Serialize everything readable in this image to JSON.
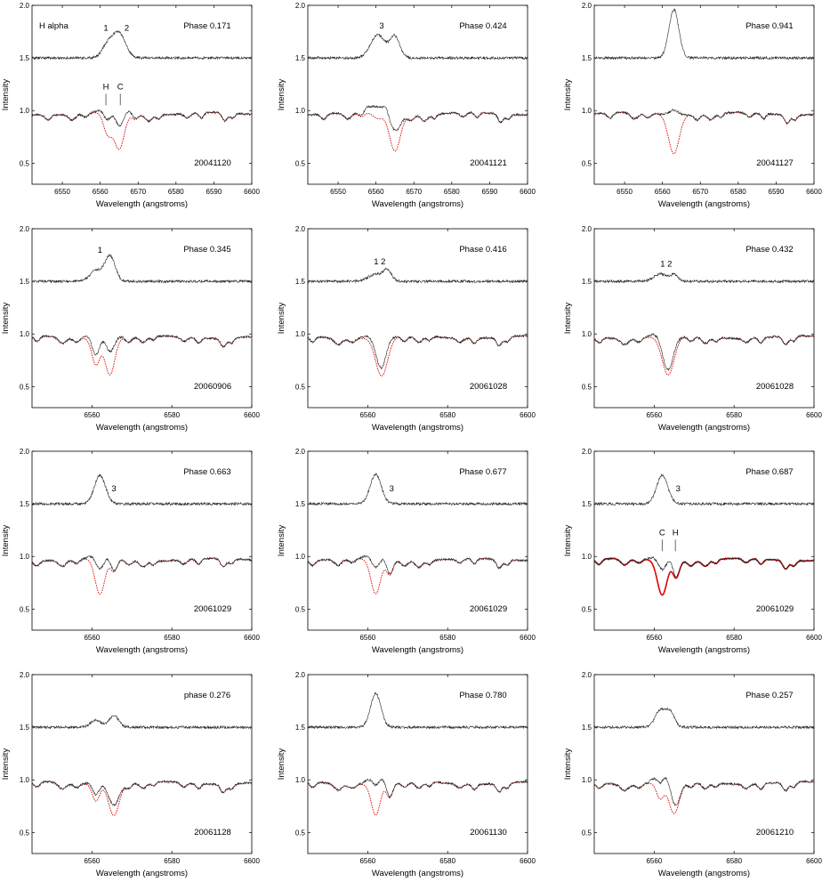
{
  "figure": {
    "ylabel": "Intensity",
    "xlabel": "Wavelength (angstroms)",
    "colors": {
      "observed": "#222222",
      "model": "#e00000",
      "axis": "#000000"
    }
  },
  "chart_data": [
    {
      "type": "line",
      "xlim": [
        6542,
        6600
      ],
      "ylim": [
        0.3,
        2.0
      ],
      "xticks": [
        6550,
        6560,
        6570,
        6580,
        6590,
        6600
      ],
      "yticks": [
        0.5,
        1.0,
        1.5,
        2.0
      ],
      "xtick_labels": [
        "6550",
        "6560",
        "6570",
        "6580",
        "6590",
        "6600"
      ],
      "ytick_labels": [
        "0.5",
        "1.0",
        "1.5",
        "2.0"
      ],
      "label": "H alpha",
      "phase": "Phase 0.171",
      "date": "20041120",
      "emission": [
        {
          "x": 6562,
          "y": 1.62,
          "w": 1.5
        },
        {
          "x": 6565,
          "y": 1.73,
          "w": 1.7
        }
      ],
      "absorption": [
        {
          "x": 6562,
          "d": 0.2,
          "w": 1.1
        },
        {
          "x": 6565,
          "d": 0.34,
          "w": 1.3
        }
      ],
      "features": [
        {
          "text": "1",
          "x": 6561.5,
          "y": 1.76
        },
        {
          "text": "2",
          "x": 6567,
          "y": 1.76
        }
      ],
      "markers": [
        {
          "text": "H",
          "x": 6561.5
        },
        {
          "text": "C",
          "x": 6565.3
        }
      ]
    },
    {
      "type": "line",
      "xlim": [
        6542,
        6600
      ],
      "ylim": [
        0.3,
        2.0
      ],
      "xticks": [
        6550,
        6560,
        6570,
        6580,
        6590,
        6600
      ],
      "yticks": [
        0.5,
        1.0,
        1.5,
        2.0
      ],
      "xtick_labels": [
        "6550",
        "6560",
        "6570",
        "6580",
        "6590",
        "6600"
      ],
      "ytick_labels": [
        "0.5",
        "1.0",
        "1.5",
        "2.0"
      ],
      "phase": "Phase 0.424",
      "date": "20041121",
      "emission": [
        {
          "x": 6560.5,
          "y": 1.72,
          "w": 1.9
        },
        {
          "x": 6565,
          "y": 1.7,
          "w": 1.3
        }
      ],
      "absorption": [
        {
          "x": 6560.5,
          "d": 0.05,
          "w": 1.2
        },
        {
          "x": 6565,
          "d": 0.35,
          "w": 1.4
        }
      ],
      "features": [
        {
          "text": "3",
          "x": 6561.5,
          "y": 1.78
        }
      ],
      "markers": []
    },
    {
      "type": "line",
      "xlim": [
        6542,
        6600
      ],
      "ylim": [
        0.3,
        2.0
      ],
      "xticks": [
        6550,
        6560,
        6570,
        6580,
        6590,
        6600
      ],
      "yticks": [
        0.5,
        1.0,
        1.5,
        2.0
      ],
      "xtick_labels": [
        "6550",
        "6560",
        "6570",
        "6580",
        "6590",
        "6600"
      ],
      "ytick_labels": [
        "0.5",
        "1.0",
        "1.5",
        "2.0"
      ],
      "phase": "Phase 0.941",
      "date": "20041127",
      "emission": [
        {
          "x": 6563,
          "y": 1.96,
          "w": 1.3
        }
      ],
      "absorption": [
        {
          "x": 6563,
          "d": 0.37,
          "w": 1.4
        }
      ],
      "features": [],
      "markers": []
    },
    {
      "type": "line",
      "xlim": [
        6545,
        6600
      ],
      "ylim": [
        0.3,
        2.0
      ],
      "xticks": [
        6560,
        6580,
        6600
      ],
      "yticks": [
        0.5,
        1.0,
        1.5,
        2.0
      ],
      "xtick_labels": [
        "6560",
        "6580",
        "6600"
      ],
      "ytick_labels": [
        "0.5",
        "1.0",
        "1.5",
        "2.0"
      ],
      "phase": "Phase 0.345",
      "date": "20060906",
      "emission": [
        {
          "x": 6561,
          "y": 1.6,
          "w": 1.5
        },
        {
          "x": 6564.5,
          "y": 1.74,
          "w": 1.3
        }
      ],
      "absorption": [
        {
          "x": 6561,
          "d": 0.25,
          "w": 1.0
        },
        {
          "x": 6564.5,
          "d": 0.35,
          "w": 1.2
        }
      ],
      "features": [
        {
          "text": "1",
          "x": 6562,
          "y": 1.77
        }
      ],
      "markers": []
    },
    {
      "type": "line",
      "xlim": [
        6545,
        6600
      ],
      "ylim": [
        0.3,
        2.0
      ],
      "xticks": [
        6560,
        6580,
        6600
      ],
      "yticks": [
        0.5,
        1.0,
        1.5,
        2.0
      ],
      "xtick_labels": [
        "6560",
        "6580",
        "6600"
      ],
      "ytick_labels": [
        "0.5",
        "1.0",
        "1.5",
        "2.0"
      ],
      "phase": "Phase 0.416",
      "date": "20061028",
      "emission": [
        {
          "x": 6562,
          "y": 1.57,
          "w": 1.8
        },
        {
          "x": 6565,
          "y": 1.6,
          "w": 1.0
        }
      ],
      "absorption": [
        {
          "x": 6563.5,
          "d": 0.37,
          "w": 1.5
        }
      ],
      "features": [
        {
          "text": "1 2",
          "x": 6563,
          "y": 1.66
        }
      ],
      "markers": []
    },
    {
      "type": "line",
      "xlim": [
        6545,
        6600
      ],
      "ylim": [
        0.3,
        2.0
      ],
      "xticks": [
        6560,
        6580,
        6600
      ],
      "yticks": [
        0.5,
        1.0,
        1.5,
        2.0
      ],
      "xtick_labels": [
        "6560",
        "6580",
        "6600"
      ],
      "ytick_labels": [
        "0.5",
        "1.0",
        "1.5",
        "2.0"
      ],
      "phase": "Phase 0.432",
      "date": "20061028",
      "emission": [
        {
          "x": 6561.5,
          "y": 1.57,
          "w": 1.6
        },
        {
          "x": 6565,
          "y": 1.56,
          "w": 1.0
        }
      ],
      "absorption": [
        {
          "x": 6563.5,
          "d": 0.37,
          "w": 1.5
        }
      ],
      "features": [
        {
          "text": "1 2",
          "x": 6563,
          "y": 1.64
        }
      ],
      "markers": []
    },
    {
      "type": "line",
      "xlim": [
        6545,
        6600
      ],
      "ylim": [
        0.3,
        2.0
      ],
      "xticks": [
        6560,
        6580,
        6600
      ],
      "yticks": [
        0.5,
        1.0,
        1.5,
        2.0
      ],
      "xtick_labels": [
        "6560",
        "6580",
        "6600"
      ],
      "ytick_labels": [
        "0.5",
        "1.0",
        "1.5",
        "2.0"
      ],
      "phase": "Phase 0.663",
      "date": "20061029",
      "emission": [
        {
          "x": 6562,
          "y": 1.77,
          "w": 1.4
        }
      ],
      "absorption": [
        {
          "x": 6562,
          "d": 0.34,
          "w": 1.2
        },
        {
          "x": 6565.5,
          "d": 0.12,
          "w": 0.8
        }
      ],
      "features": [
        {
          "text": "3",
          "x": 6565.5,
          "y": 1.62
        }
      ],
      "markers": []
    },
    {
      "type": "line",
      "xlim": [
        6545,
        6600
      ],
      "ylim": [
        0.3,
        2.0
      ],
      "xticks": [
        6560,
        6580,
        6600
      ],
      "yticks": [
        0.5,
        1.0,
        1.5,
        2.0
      ],
      "xtick_labels": [
        "6560",
        "6580",
        "6600"
      ],
      "ytick_labels": [
        "0.5",
        "1.0",
        "1.5",
        "2.0"
      ],
      "phase": "Phase 0.677",
      "date": "20061029",
      "emission": [
        {
          "x": 6562,
          "y": 1.78,
          "w": 1.4
        }
      ],
      "absorption": [
        {
          "x": 6562,
          "d": 0.33,
          "w": 1.2
        },
        {
          "x": 6565.5,
          "d": 0.14,
          "w": 0.8
        }
      ],
      "features": [
        {
          "text": "3",
          "x": 6566,
          "y": 1.62
        }
      ],
      "markers": []
    },
    {
      "type": "line",
      "xlim": [
        6545,
        6600
      ],
      "ylim": [
        0.3,
        2.0
      ],
      "xticks": [
        6560,
        6580,
        6600
      ],
      "yticks": [
        0.5,
        1.0,
        1.5,
        2.0
      ],
      "xtick_labels": [
        "6560",
        "6580",
        "6600"
      ],
      "ytick_labels": [
        "0.5",
        "1.0",
        "1.5",
        "2.0"
      ],
      "phase": "Phase 0.687",
      "date": "20061029",
      "emission": [
        {
          "x": 6562,
          "y": 1.77,
          "w": 1.4
        }
      ],
      "absorption": [
        {
          "x": 6562,
          "d": 0.33,
          "w": 1.2
        },
        {
          "x": 6565.5,
          "d": 0.16,
          "w": 0.8
        }
      ],
      "features": [
        {
          "text": "3",
          "x": 6566,
          "y": 1.62
        }
      ],
      "markers": [
        {
          "text": "C",
          "x": 6562
        },
        {
          "text": "H",
          "x": 6565.3
        }
      ]
    },
    {
      "type": "line",
      "xlim": [
        6545,
        6600
      ],
      "ylim": [
        0.3,
        2.0
      ],
      "xticks": [
        6560,
        6580,
        6600
      ],
      "yticks": [
        0.5,
        1.0,
        1.5,
        2.0
      ],
      "xtick_labels": [
        "6560",
        "6580",
        "6600"
      ],
      "ytick_labels": [
        "0.5",
        "1.0",
        "1.5",
        "2.0"
      ],
      "phase": "phase 0.276",
      "date": "20061128",
      "emission": [
        {
          "x": 6561,
          "y": 1.57,
          "w": 1.3
        },
        {
          "x": 6565.5,
          "y": 1.61,
          "w": 1.2
        }
      ],
      "absorption": [
        {
          "x": 6561,
          "d": 0.16,
          "w": 0.9
        },
        {
          "x": 6565.5,
          "d": 0.3,
          "w": 1.3
        }
      ],
      "features": [],
      "markers": []
    },
    {
      "type": "line",
      "xlim": [
        6545,
        6600
      ],
      "ylim": [
        0.3,
        2.0
      ],
      "xticks": [
        6560,
        6580,
        6600
      ],
      "yticks": [
        0.5,
        1.0,
        1.5,
        2.0
      ],
      "xtick_labels": [
        "6560",
        "6580",
        "6600"
      ],
      "ytick_labels": [
        "0.5",
        "1.0",
        "1.5",
        "2.0"
      ],
      "phase": "Phase 0.780",
      "date": "20061130",
      "emission": [
        {
          "x": 6562,
          "y": 1.82,
          "w": 1.3
        }
      ],
      "absorption": [
        {
          "x": 6562,
          "d": 0.3,
          "w": 1.1
        },
        {
          "x": 6565.5,
          "d": 0.14,
          "w": 0.8
        }
      ],
      "features": [],
      "markers": []
    },
    {
      "type": "line",
      "xlim": [
        6545,
        6600
      ],
      "ylim": [
        0.3,
        2.0
      ],
      "xticks": [
        6560,
        6580,
        6600
      ],
      "yticks": [
        0.5,
        1.0,
        1.5,
        2.0
      ],
      "xtick_labels": [
        "6560",
        "6580",
        "6600"
      ],
      "ytick_labels": [
        "0.5",
        "1.0",
        "1.5",
        "2.0"
      ],
      "phase": "Phase 0.257",
      "date": "20061210",
      "emission": [
        {
          "x": 6561.5,
          "y": 1.66,
          "w": 1.3
        },
        {
          "x": 6564,
          "y": 1.64,
          "w": 1.1
        }
      ],
      "absorption": [
        {
          "x": 6561.5,
          "d": 0.15,
          "w": 0.9
        },
        {
          "x": 6565,
          "d": 0.3,
          "w": 1.3
        }
      ],
      "features": [],
      "markers": []
    }
  ]
}
